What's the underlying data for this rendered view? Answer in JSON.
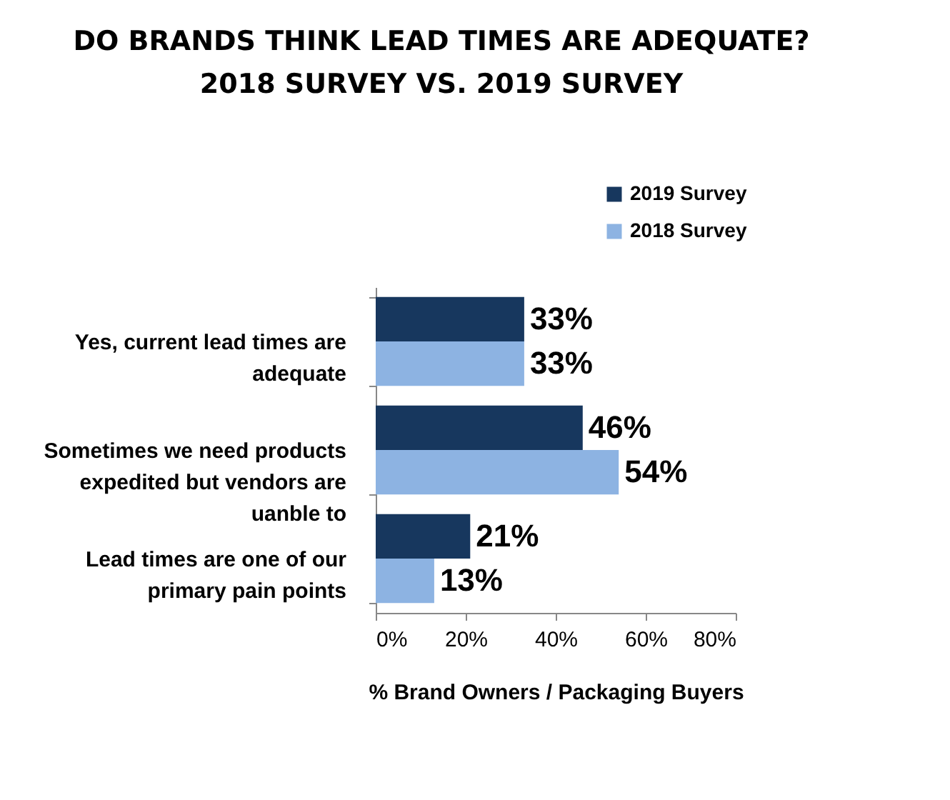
{
  "chart_data": {
    "type": "bar",
    "orientation": "horizontal",
    "title": "DO BRANDS THINK LEAD TIMES ARE ADEQUATE? 2018 SURVEY VS. 2019 SURVEY",
    "xlabel": "% Brand Owners / Packaging Buyers",
    "categories": [
      "Yes, current lead times are adequate",
      "Sometimes we need products expedited but vendors are uanble to",
      "Lead times are one of our primary pain points"
    ],
    "series": [
      {
        "name": "2019 Survey",
        "color": "#17375e",
        "values": [
          33,
          46,
          21
        ],
        "value_labels": [
          "33%",
          "46%",
          "21%"
        ]
      },
      {
        "name": "2018 Survey",
        "color": "#8db3e2",
        "values": [
          33,
          54,
          13
        ],
        "value_labels": [
          "33%",
          "54%",
          "13%"
        ]
      }
    ],
    "xlim": [
      0,
      80
    ],
    "xticks": [
      {
        "value": 0,
        "label": "0%"
      },
      {
        "value": 20,
        "label": "20%"
      },
      {
        "value": 40,
        "label": "40%"
      },
      {
        "value": 60,
        "label": "60%"
      },
      {
        "value": 80,
        "label": "80%"
      }
    ],
    "grid": false,
    "legend": "top right"
  }
}
